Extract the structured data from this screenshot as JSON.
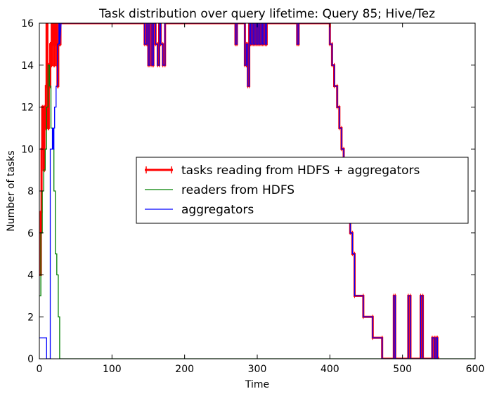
{
  "chart_data": {
    "type": "line",
    "title": "Task distribution over query lifetime: Query 85; Hive/Tez",
    "xlabel": "Time",
    "ylabel": "Number of tasks",
    "xlim": [
      0,
      600
    ],
    "ylim": [
      0,
      16
    ],
    "xticks": [
      "0",
      "100",
      "200",
      "300",
      "400",
      "500",
      "600"
    ],
    "yticks": [
      "0",
      "2",
      "4",
      "6",
      "8",
      "10",
      "12",
      "14",
      "16"
    ],
    "grid": false,
    "legend_position": "center-right",
    "series": [
      {
        "name": "tasks reading from HDFS + aggregators",
        "color": "#ff0000",
        "style": "errorbar-line",
        "x": [
          0,
          2,
          2,
          3,
          3,
          4,
          4,
          5,
          5,
          6,
          6,
          7,
          7,
          8,
          8,
          9,
          9,
          10,
          10,
          11,
          11,
          12,
          12,
          13,
          13,
          14,
          14,
          15,
          15,
          16,
          16,
          17,
          17,
          18,
          18,
          19,
          19,
          20,
          20,
          21,
          21,
          22,
          22,
          23,
          23,
          24,
          24,
          25,
          25,
          26,
          26,
          27,
          27,
          28,
          28,
          29,
          29,
          30,
          145,
          145,
          148,
          148,
          150,
          150,
          152,
          152,
          155,
          155,
          157,
          157,
          160,
          160,
          163,
          163,
          165,
          165,
          167,
          167,
          170,
          170,
          173,
          173,
          270,
          270,
          272,
          272,
          283,
          283,
          285,
          285,
          287,
          287,
          289,
          289,
          291,
          291,
          293,
          293,
          295,
          295,
          297,
          297,
          299,
          299,
          301,
          301,
          303,
          303,
          305,
          305,
          307,
          307,
          309,
          309,
          311,
          311,
          313,
          313,
          355,
          355,
          357,
          357,
          400,
          400,
          403,
          403,
          406,
          406,
          410,
          410,
          413,
          413,
          416,
          416,
          419,
          419,
          422,
          422,
          425,
          425,
          428,
          428,
          431,
          431,
          434,
          434,
          446,
          446,
          459,
          459,
          472,
          472,
          488,
          488,
          490,
          490,
          508,
          508,
          511,
          511,
          525,
          525,
          528,
          528,
          541,
          541,
          544,
          544,
          546,
          546,
          548,
          548,
          550
        ],
        "y": [
          4,
          4,
          7,
          7,
          10,
          10,
          12,
          12,
          11,
          11,
          9,
          9,
          12,
          12,
          11,
          11,
          13,
          13,
          16,
          16,
          14,
          14,
          11,
          11,
          14,
          14,
          13,
          13,
          15,
          15,
          14,
          14,
          16,
          16,
          15,
          15,
          16,
          16,
          14,
          14,
          16,
          16,
          15,
          15,
          16,
          16,
          14,
          14,
          13,
          13,
          15,
          15,
          16,
          16,
          15,
          15,
          16,
          16,
          16,
          15,
          15,
          16,
          16,
          14,
          14,
          16,
          16,
          14,
          14,
          16,
          16,
          15,
          15,
          14,
          14,
          16,
          16,
          15,
          15,
          14,
          14,
          16,
          16,
          15,
          15,
          16,
          16,
          14,
          14,
          15,
          15,
          13,
          13,
          16,
          16,
          15,
          15,
          16,
          16,
          15,
          15,
          16,
          16,
          15,
          15,
          16,
          16,
          15,
          15,
          16,
          16,
          15,
          15,
          16,
          16,
          15,
          15,
          16,
          16,
          15,
          15,
          16,
          16,
          15,
          15,
          14,
          14,
          13,
          13,
          12,
          12,
          11,
          11,
          10,
          10,
          9,
          9,
          8,
          8,
          7,
          7,
          6,
          6,
          5,
          5,
          3,
          3,
          2,
          2,
          1,
          1,
          0,
          0,
          3,
          3,
          0,
          0,
          3,
          3,
          0,
          0,
          3,
          3,
          0,
          0,
          1,
          1,
          0,
          0,
          1,
          1,
          0,
          0
        ]
      },
      {
        "name": "readers from HDFS",
        "color": "#008000",
        "style": "line",
        "x": [
          0,
          2,
          2,
          4,
          4,
          6,
          6,
          8,
          8,
          10,
          10,
          12,
          12,
          14,
          14,
          16,
          16,
          18,
          18,
          20,
          20,
          22,
          22,
          24,
          24,
          26,
          26,
          28,
          28,
          600
        ],
        "y": [
          3,
          3,
          6,
          6,
          8,
          8,
          9,
          9,
          10,
          10,
          12,
          12,
          14,
          14,
          13,
          13,
          11,
          11,
          10,
          10,
          8,
          8,
          5,
          5,
          4,
          4,
          2,
          2,
          0,
          0
        ]
      },
      {
        "name": "aggregators",
        "color": "#0000ff",
        "style": "line",
        "x": [
          0,
          10,
          10,
          15,
          15,
          18,
          18,
          19,
          19,
          20,
          20,
          21,
          21,
          23,
          23,
          25,
          25,
          27,
          27,
          28,
          28,
          30,
          145,
          145,
          148,
          148,
          150,
          150,
          152,
          152,
          155,
          155,
          157,
          157,
          160,
          160,
          163,
          163,
          165,
          165,
          167,
          167,
          170,
          170,
          173,
          173,
          270,
          270,
          272,
          272,
          283,
          283,
          285,
          285,
          287,
          287,
          289,
          289,
          291,
          291,
          293,
          293,
          295,
          295,
          297,
          297,
          299,
          299,
          301,
          301,
          303,
          303,
          305,
          305,
          307,
          307,
          309,
          309,
          311,
          311,
          313,
          313,
          355,
          355,
          357,
          357,
          400,
          400,
          403,
          403,
          406,
          406,
          410,
          410,
          413,
          413,
          416,
          416,
          419,
          419,
          422,
          422,
          425,
          425,
          428,
          428,
          431,
          431,
          434,
          434,
          446,
          446,
          459,
          459,
          472,
          472,
          488,
          488,
          490,
          490,
          508,
          508,
          511,
          511,
          525,
          525,
          528,
          528,
          541,
          541,
          544,
          544,
          546,
          546,
          548,
          548,
          550
        ],
        "y": [
          1,
          1,
          0,
          0,
          10,
          10,
          11,
          11,
          10,
          10,
          11,
          11,
          12,
          12,
          13,
          13,
          15,
          15,
          16,
          16,
          15,
          16,
          16,
          15,
          15,
          16,
          16,
          14,
          14,
          16,
          16,
          14,
          14,
          16,
          16,
          15,
          15,
          14,
          14,
          16,
          16,
          15,
          15,
          14,
          14,
          16,
          16,
          15,
          15,
          16,
          16,
          14,
          14,
          15,
          15,
          13,
          13,
          16,
          16,
          15,
          15,
          16,
          16,
          15,
          15,
          16,
          16,
          15,
          15,
          16,
          16,
          15,
          15,
          16,
          16,
          15,
          15,
          16,
          16,
          15,
          15,
          16,
          16,
          15,
          15,
          16,
          16,
          15,
          15,
          14,
          14,
          13,
          13,
          12,
          12,
          11,
          11,
          10,
          10,
          9,
          9,
          8,
          8,
          7,
          7,
          6,
          6,
          5,
          5,
          3,
          3,
          2,
          2,
          1,
          1,
          0,
          0,
          3,
          3,
          0,
          0,
          3,
          3,
          0,
          0,
          3,
          3,
          0,
          0,
          1,
          1,
          0,
          0,
          1,
          1,
          0,
          0
        ]
      }
    ]
  }
}
